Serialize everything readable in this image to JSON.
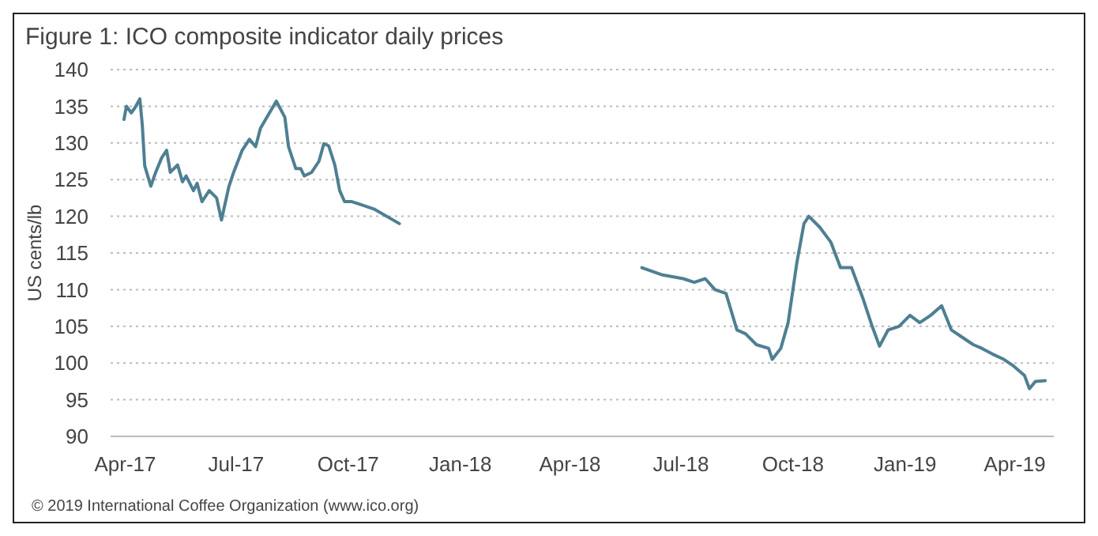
{
  "chart_data": {
    "type": "line",
    "title": "Figure 1: ICO composite indicator daily prices",
    "ylabel": "US cents/lb",
    "annotations": [
      "© 2019 International Coffee Organization (www.ico.org)"
    ],
    "x": [
      "2017-03-31",
      "2017-04-02",
      "2017-04-06",
      "2017-04-09",
      "2017-04-13",
      "2017-04-15",
      "2017-04-17",
      "2017-04-22",
      "2017-04-26",
      "2017-05-01",
      "2017-05-05",
      "2017-05-08",
      "2017-05-14",
      "2017-05-18",
      "2017-05-21",
      "2017-05-27",
      "2017-05-30",
      "2017-06-03",
      "2017-06-09",
      "2017-06-15",
      "2017-06-19",
      "2017-06-25",
      "2017-06-29",
      "2017-07-06",
      "2017-07-12",
      "2017-07-17",
      "2017-07-21",
      "2017-07-28",
      "2017-08-03",
      "2017-08-10",
      "2017-08-13",
      "2017-08-19",
      "2017-08-23",
      "2017-08-26",
      "2017-09-01",
      "2017-09-07",
      "2017-09-11",
      "2017-09-15",
      "2017-09-20",
      "2017-09-24",
      "2017-09-28",
      "2017-10-04",
      "2017-10-13",
      "2017-10-22",
      "2017-11-12",
      "2018-03-01",
      "2018-05-30",
      "2018-06-16",
      "2018-07-03",
      "2018-07-12",
      "2018-07-21",
      "2018-07-29",
      "2018-08-07",
      "2018-08-16",
      "2018-08-23",
      "2018-09-01",
      "2018-09-11",
      "2018-09-14",
      "2018-09-21",
      "2018-09-27",
      "2018-10-04",
      "2018-10-10",
      "2018-10-14",
      "2018-10-23",
      "2018-11-01",
      "2018-11-09",
      "2018-11-18",
      "2018-11-27",
      "2018-12-05",
      "2018-12-11",
      "2018-12-18",
      "2018-12-27",
      "2019-01-05",
      "2019-01-13",
      "2019-01-22",
      "2019-01-31",
      "2019-02-08",
      "2019-02-17",
      "2019-02-26",
      "2019-03-05",
      "2019-03-14",
      "2019-03-23",
      "2019-03-31",
      "2019-04-09",
      "2019-04-13",
      "2019-04-18",
      "2019-04-26"
    ],
    "series": [
      {
        "color": "#4f7f92",
        "values": [
          133.2,
          135,
          134.1,
          134.8,
          136,
          132.5,
          126.9,
          124.1,
          126,
          128,
          129,
          126,
          127,
          124.7,
          125.5,
          123.5,
          124.5,
          122,
          123.5,
          122.5,
          119.5,
          124,
          126,
          129,
          130.5,
          129.5,
          132,
          134,
          135.7,
          133.5,
          129.5,
          126.5,
          126.5,
          125.5,
          126,
          127.5,
          129.9,
          129.6,
          127,
          123.5,
          122,
          122,
          121.5,
          121,
          119,
          null,
          113,
          112,
          111.5,
          111,
          111.5,
          110,
          109.5,
          104.5,
          104,
          102.5,
          102,
          100.5,
          102,
          105.5,
          113.5,
          119,
          120,
          118.5,
          116.5,
          113,
          113,
          109,
          105,
          102.3,
          104.5,
          105,
          106.5,
          105.5,
          106.5,
          107.8,
          104.5,
          103.5,
          102.5,
          102,
          101.2,
          100.5,
          99.6,
          98.3,
          96.5,
          97.5,
          97.6
        ]
      }
    ],
    "xlim": [
      "2017-03-20",
      "2019-05-03"
    ],
    "xticks": [
      {
        "value": "2017-04-01",
        "label": "Apr-17"
      },
      {
        "value": "2017-07-01",
        "label": "Jul-17"
      },
      {
        "value": "2017-10-01",
        "label": "Oct-17"
      },
      {
        "value": "2018-01-01",
        "label": "Jan-18"
      },
      {
        "value": "2018-04-01",
        "label": "Apr-18"
      },
      {
        "value": "2018-07-01",
        "label": "Jul-18"
      },
      {
        "value": "2018-10-01",
        "label": "Oct-18"
      },
      {
        "value": "2019-01-01",
        "label": "Jan-19"
      },
      {
        "value": "2019-04-01",
        "label": "Apr-19"
      }
    ],
    "ylim": [
      90,
      140
    ],
    "yticks": [
      90,
      95,
      100,
      105,
      110,
      115,
      120,
      125,
      130,
      135,
      140
    ],
    "grid": "y",
    "marker": "none",
    "line_style": "solid"
  }
}
